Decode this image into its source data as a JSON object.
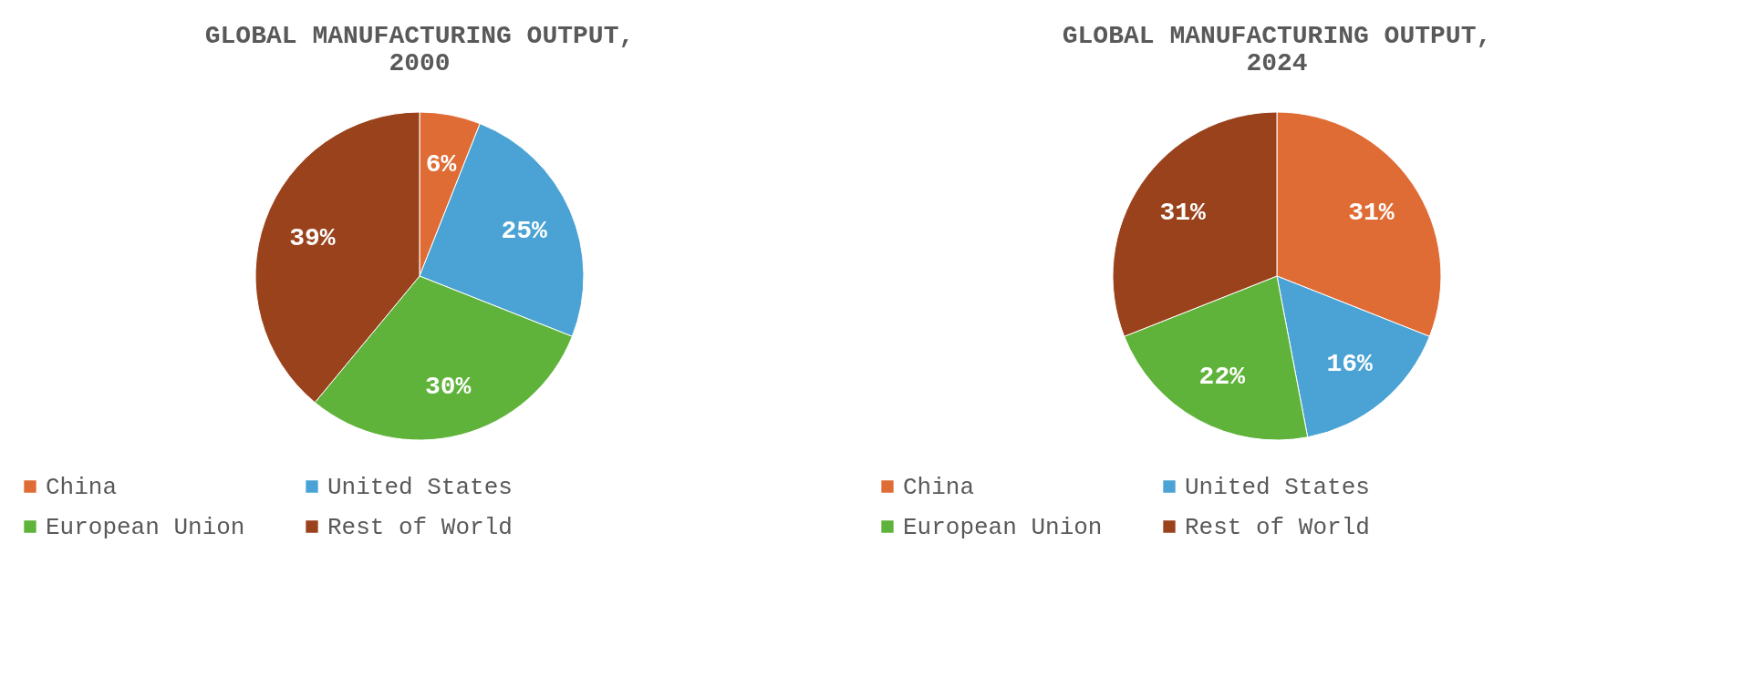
{
  "chart_data": [
    {
      "type": "pie",
      "title": "GLOBAL MANUFACTURING OUTPUT, 2000",
      "categories": [
        "China",
        "United States",
        "European Union",
        "Rest of World"
      ],
      "values": [
        6,
        25,
        30,
        39
      ],
      "value_labels": [
        "6%",
        "25%",
        "30%",
        "39%"
      ],
      "colors": [
        "#e06c35",
        "#4aa3d4",
        "#5fb33a",
        "#9a421c"
      ],
      "legend": "bottom"
    },
    {
      "type": "pie",
      "title": "GLOBAL MANUFACTURING OUTPUT, 2024",
      "categories": [
        "China",
        "United States",
        "European Union",
        "Rest of World"
      ],
      "values": [
        31,
        16,
        22,
        31
      ],
      "value_labels": [
        "31%",
        "16%",
        "22%",
        "31%"
      ],
      "colors": [
        "#e06c35",
        "#4aa3d4",
        "#5fb33a",
        "#9a421c"
      ],
      "legend": "bottom"
    }
  ]
}
